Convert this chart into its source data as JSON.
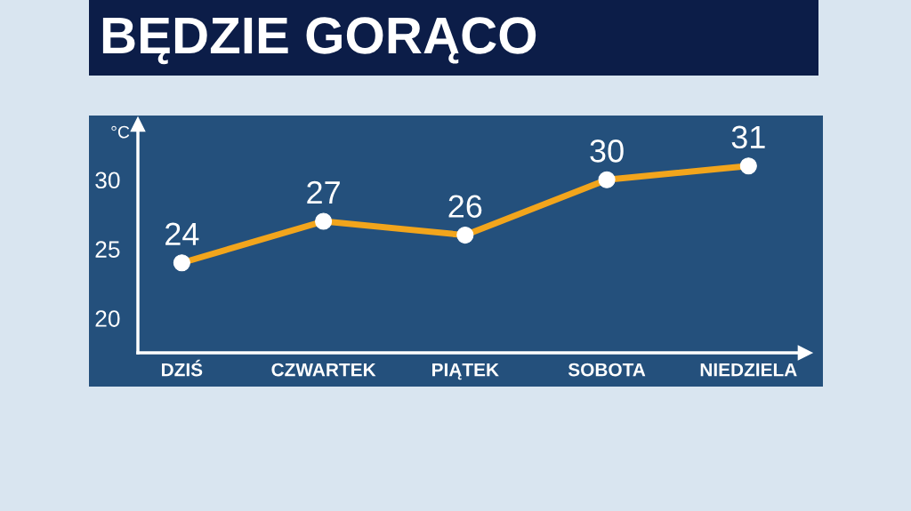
{
  "chart_data": {
    "type": "line",
    "title": "BĘDZIE GORĄCO",
    "ylabel": "°C",
    "categories": [
      "DZIŚ",
      "CZWARTEK",
      "PIĄTEK",
      "SOBOTA",
      "NIEDZIELA"
    ],
    "series": [
      {
        "color": "#f2a51c",
        "values": [
          24,
          27,
          26,
          30,
          31
        ]
      }
    ],
    "ylim": [
      17.5,
      34
    ],
    "yticks": [
      20,
      25,
      30
    ],
    "data_labels": true,
    "marker": "circle",
    "line_style": "solid"
  }
}
